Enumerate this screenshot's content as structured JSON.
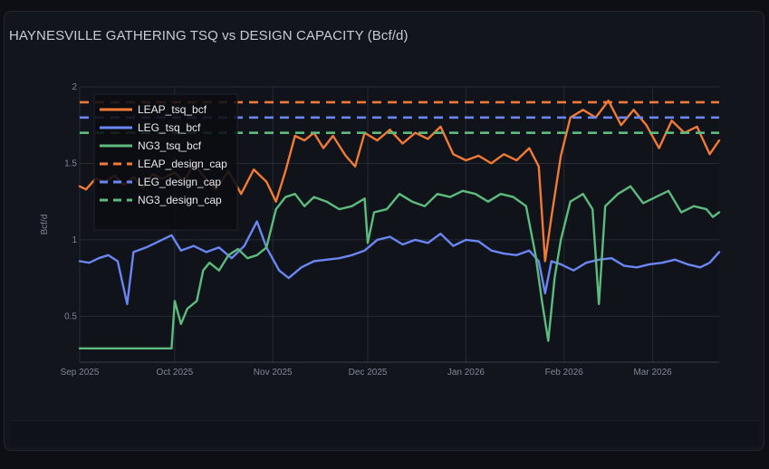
{
  "chart_data": {
    "type": "line",
    "title": "HAYNESVILLE GATHERING TSQ vs DESIGN CAPACITY (Bcf/d)",
    "xlabel": "",
    "ylabel": "Bcf/d",
    "xlim": [
      "2025-09-01",
      "2026-03-22"
    ],
    "ylim": [
      0.2,
      2.0
    ],
    "x_ticks": [
      "Sep 2025",
      "Oct 2025",
      "Nov 2025",
      "Dec 2025",
      "Jan 2026",
      "Feb 2026",
      "Mar 2026"
    ],
    "y_ticks": [
      0.5,
      1,
      1.5,
      2
    ],
    "grid": true,
    "legend_position": "top-left",
    "series": [
      {
        "name": "LEAP_tsq_bcf",
        "color": "#f07a36",
        "dash": "solid",
        "points": [
          [
            "2025-09-01",
            1.35
          ],
          [
            "2025-09-03",
            1.33
          ],
          [
            "2025-09-06",
            1.4
          ],
          [
            "2025-09-09",
            1.38
          ],
          [
            "2025-09-12",
            1.42
          ],
          [
            "2025-09-15",
            1.36
          ],
          [
            "2025-09-18",
            1.41
          ],
          [
            "2025-09-21",
            1.34
          ],
          [
            "2025-09-24",
            1.43
          ],
          [
            "2025-09-27",
            1.4
          ],
          [
            "2025-10-01",
            1.44
          ],
          [
            "2025-10-04",
            1.38
          ],
          [
            "2025-10-07",
            1.5
          ],
          [
            "2025-10-10",
            1.42
          ],
          [
            "2025-10-14",
            1.33
          ],
          [
            "2025-10-18",
            1.45
          ],
          [
            "2025-10-22",
            1.3
          ],
          [
            "2025-10-26",
            1.46
          ],
          [
            "2025-10-30",
            1.38
          ],
          [
            "2025-11-02",
            1.25
          ],
          [
            "2025-11-05",
            1.45
          ],
          [
            "2025-11-08",
            1.68
          ],
          [
            "2025-11-11",
            1.65
          ],
          [
            "2025-11-14",
            1.7
          ],
          [
            "2025-11-17",
            1.6
          ],
          [
            "2025-11-20",
            1.68
          ],
          [
            "2025-11-24",
            1.55
          ],
          [
            "2025-11-27",
            1.48
          ],
          [
            "2025-11-30",
            1.7
          ],
          [
            "2025-12-04",
            1.65
          ],
          [
            "2025-12-08",
            1.72
          ],
          [
            "2025-12-12",
            1.63
          ],
          [
            "2025-12-16",
            1.7
          ],
          [
            "2025-12-20",
            1.66
          ],
          [
            "2025-12-24",
            1.74
          ],
          [
            "2025-12-28",
            1.56
          ],
          [
            "2026-01-01",
            1.52
          ],
          [
            "2026-01-05",
            1.55
          ],
          [
            "2026-01-09",
            1.5
          ],
          [
            "2026-01-13",
            1.56
          ],
          [
            "2026-01-17",
            1.52
          ],
          [
            "2026-01-21",
            1.6
          ],
          [
            "2026-01-24",
            1.48
          ],
          [
            "2026-01-26",
            0.86
          ],
          [
            "2026-01-28",
            1.15
          ],
          [
            "2026-01-31",
            1.55
          ],
          [
            "2026-02-03",
            1.8
          ],
          [
            "2026-02-07",
            1.85
          ],
          [
            "2026-02-11",
            1.8
          ],
          [
            "2026-02-15",
            1.91
          ],
          [
            "2026-02-19",
            1.75
          ],
          [
            "2026-02-23",
            1.85
          ],
          [
            "2026-02-27",
            1.75
          ],
          [
            "2026-03-03",
            1.6
          ],
          [
            "2026-03-07",
            1.78
          ],
          [
            "2026-03-11",
            1.7
          ],
          [
            "2026-03-15",
            1.74
          ],
          [
            "2026-03-19",
            1.56
          ],
          [
            "2026-03-22",
            1.65
          ]
        ]
      },
      {
        "name": "LEG_tsq_bcf",
        "color": "#6a86f2",
        "dash": "solid",
        "points": [
          [
            "2025-09-01",
            0.86
          ],
          [
            "2025-09-04",
            0.85
          ],
          [
            "2025-09-07",
            0.88
          ],
          [
            "2025-09-10",
            0.9
          ],
          [
            "2025-09-13",
            0.86
          ],
          [
            "2025-09-16",
            0.58
          ],
          [
            "2025-09-18",
            0.92
          ],
          [
            "2025-09-22",
            0.95
          ],
          [
            "2025-09-26",
            0.99
          ],
          [
            "2025-09-30",
            1.03
          ],
          [
            "2025-10-03",
            0.93
          ],
          [
            "2025-10-07",
            0.96
          ],
          [
            "2025-10-11",
            0.92
          ],
          [
            "2025-10-15",
            0.95
          ],
          [
            "2025-10-19",
            0.88
          ],
          [
            "2025-10-23",
            0.96
          ],
          [
            "2025-10-27",
            1.12
          ],
          [
            "2025-10-30",
            0.95
          ],
          [
            "2025-11-03",
            0.8
          ],
          [
            "2025-11-06",
            0.75
          ],
          [
            "2025-11-10",
            0.82
          ],
          [
            "2025-11-14",
            0.86
          ],
          [
            "2025-11-18",
            0.87
          ],
          [
            "2025-11-22",
            0.88
          ],
          [
            "2025-11-26",
            0.9
          ],
          [
            "2025-11-30",
            0.93
          ],
          [
            "2025-12-04",
            1.0
          ],
          [
            "2025-12-08",
            1.02
          ],
          [
            "2025-12-12",
            0.97
          ],
          [
            "2025-12-16",
            1.0
          ],
          [
            "2025-12-20",
            0.98
          ],
          [
            "2025-12-24",
            1.04
          ],
          [
            "2025-12-28",
            0.96
          ],
          [
            "2026-01-01",
            1.0
          ],
          [
            "2026-01-05",
            0.99
          ],
          [
            "2026-01-09",
            0.93
          ],
          [
            "2026-01-13",
            0.91
          ],
          [
            "2026-01-17",
            0.9
          ],
          [
            "2026-01-21",
            0.93
          ],
          [
            "2026-01-24",
            0.86
          ],
          [
            "2026-01-26",
            0.65
          ],
          [
            "2026-01-28",
            0.86
          ],
          [
            "2026-01-31",
            0.84
          ],
          [
            "2026-02-04",
            0.8
          ],
          [
            "2026-02-08",
            0.85
          ],
          [
            "2026-02-12",
            0.87
          ],
          [
            "2026-02-16",
            0.88
          ],
          [
            "2026-02-20",
            0.83
          ],
          [
            "2026-02-24",
            0.82
          ],
          [
            "2026-02-28",
            0.84
          ],
          [
            "2026-03-04",
            0.85
          ],
          [
            "2026-03-08",
            0.87
          ],
          [
            "2026-03-12",
            0.84
          ],
          [
            "2026-03-16",
            0.82
          ],
          [
            "2026-03-19",
            0.85
          ],
          [
            "2026-03-22",
            0.92
          ]
        ]
      },
      {
        "name": "NG3_tsq_bcf",
        "color": "#5dbb7e",
        "dash": "solid",
        "points": [
          [
            "2025-09-01",
            0.29
          ],
          [
            "2025-09-10",
            0.29
          ],
          [
            "2025-09-20",
            0.29
          ],
          [
            "2025-09-30",
            0.29
          ],
          [
            "2025-10-01",
            0.6
          ],
          [
            "2025-10-03",
            0.45
          ],
          [
            "2025-10-05",
            0.55
          ],
          [
            "2025-10-08",
            0.6
          ],
          [
            "2025-10-10",
            0.8
          ],
          [
            "2025-10-12",
            0.85
          ],
          [
            "2025-10-15",
            0.8
          ],
          [
            "2025-10-18",
            0.9
          ],
          [
            "2025-10-21",
            0.94
          ],
          [
            "2025-10-24",
            0.88
          ],
          [
            "2025-10-27",
            0.9
          ],
          [
            "2025-10-30",
            0.95
          ],
          [
            "2025-11-02",
            1.2
          ],
          [
            "2025-11-05",
            1.28
          ],
          [
            "2025-11-08",
            1.3
          ],
          [
            "2025-11-11",
            1.22
          ],
          [
            "2025-11-14",
            1.28
          ],
          [
            "2025-11-18",
            1.25
          ],
          [
            "2025-11-22",
            1.2
          ],
          [
            "2025-11-26",
            1.22
          ],
          [
            "2025-11-30",
            1.27
          ],
          [
            "2025-12-01",
            0.98
          ],
          [
            "2025-12-03",
            1.18
          ],
          [
            "2025-12-07",
            1.2
          ],
          [
            "2025-12-11",
            1.3
          ],
          [
            "2025-12-15",
            1.25
          ],
          [
            "2025-12-19",
            1.22
          ],
          [
            "2025-12-23",
            1.3
          ],
          [
            "2025-12-27",
            1.28
          ],
          [
            "2025-12-31",
            1.32
          ],
          [
            "2026-01-04",
            1.3
          ],
          [
            "2026-01-08",
            1.25
          ],
          [
            "2026-01-12",
            1.3
          ],
          [
            "2026-01-16",
            1.28
          ],
          [
            "2026-01-20",
            1.22
          ],
          [
            "2026-01-23",
            0.9
          ],
          [
            "2026-01-25",
            0.6
          ],
          [
            "2026-01-27",
            0.34
          ],
          [
            "2026-01-29",
            0.75
          ],
          [
            "2026-01-31",
            1.0
          ],
          [
            "2026-02-03",
            1.25
          ],
          [
            "2026-02-07",
            1.3
          ],
          [
            "2026-02-10",
            1.2
          ],
          [
            "2026-02-12",
            0.58
          ],
          [
            "2026-02-14",
            1.22
          ],
          [
            "2026-02-18",
            1.3
          ],
          [
            "2026-02-22",
            1.35
          ],
          [
            "2026-02-26",
            1.24
          ],
          [
            "2026-03-02",
            1.28
          ],
          [
            "2026-03-06",
            1.32
          ],
          [
            "2026-03-10",
            1.18
          ],
          [
            "2026-03-14",
            1.22
          ],
          [
            "2026-03-18",
            1.2
          ],
          [
            "2026-03-20",
            1.15
          ],
          [
            "2026-03-22",
            1.18
          ]
        ]
      },
      {
        "name": "LEAP_design_cap",
        "color": "#f07a36",
        "dash": "dashed",
        "points": [
          [
            "2025-09-01",
            1.9
          ],
          [
            "2026-03-22",
            1.9
          ]
        ]
      },
      {
        "name": "LEG_design_cap",
        "color": "#6a86f2",
        "dash": "dashed",
        "points": [
          [
            "2025-09-01",
            1.8
          ],
          [
            "2026-03-22",
            1.8
          ]
        ]
      },
      {
        "name": "NG3_design_cap",
        "color": "#5dbb7e",
        "dash": "dashed",
        "points": [
          [
            "2025-09-01",
            1.7
          ],
          [
            "2026-03-22",
            1.7
          ]
        ]
      }
    ]
  }
}
